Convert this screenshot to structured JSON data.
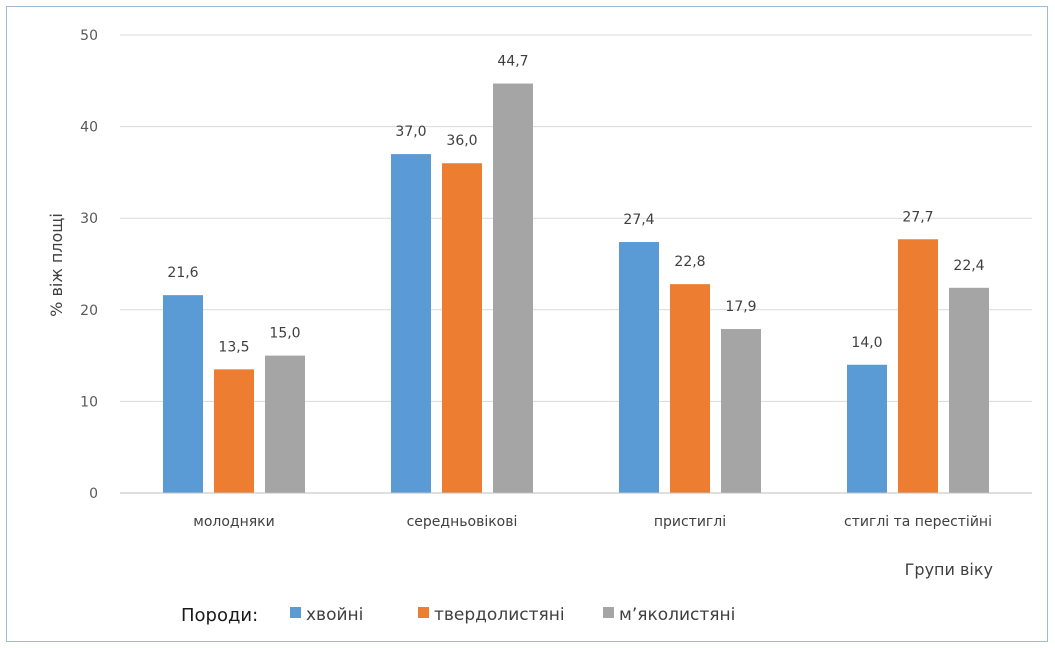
{
  "chart_data": {
    "type": "bar",
    "categories": [
      "молодняки",
      "середньовікові",
      "пристиглі",
      "стиглі та перестійні"
    ],
    "series": [
      {
        "name": "хвойні",
        "color": "#5b9bd5",
        "values": [
          21.6,
          37.0,
          27.4,
          14.0
        ],
        "labels": [
          "21,6",
          "37,0",
          "27,4",
          "14,0"
        ]
      },
      {
        "name": "твердолистяні",
        "color": "#ed7d31",
        "values": [
          13.5,
          36.0,
          22.8,
          27.7
        ],
        "labels": [
          "13,5",
          "36,0",
          "22,8",
          "27,7"
        ]
      },
      {
        "name": "м’яколистяні",
        "color": "#a5a5a5",
        "values": [
          15.0,
          44.7,
          17.9,
          22.4
        ],
        "labels": [
          "15,0",
          "44,7",
          "17,9",
          "22,4"
        ]
      }
    ],
    "yticks": [
      0,
      10,
      20,
      30,
      40,
      50
    ],
    "ylim": [
      0,
      50
    ],
    "ylabel": "% віж площі",
    "xlabel": "Групи віку",
    "legend_title": "Породи:",
    "legend_position": "bottom-left",
    "grid": true,
    "grid_color": "#d9d9d9"
  }
}
